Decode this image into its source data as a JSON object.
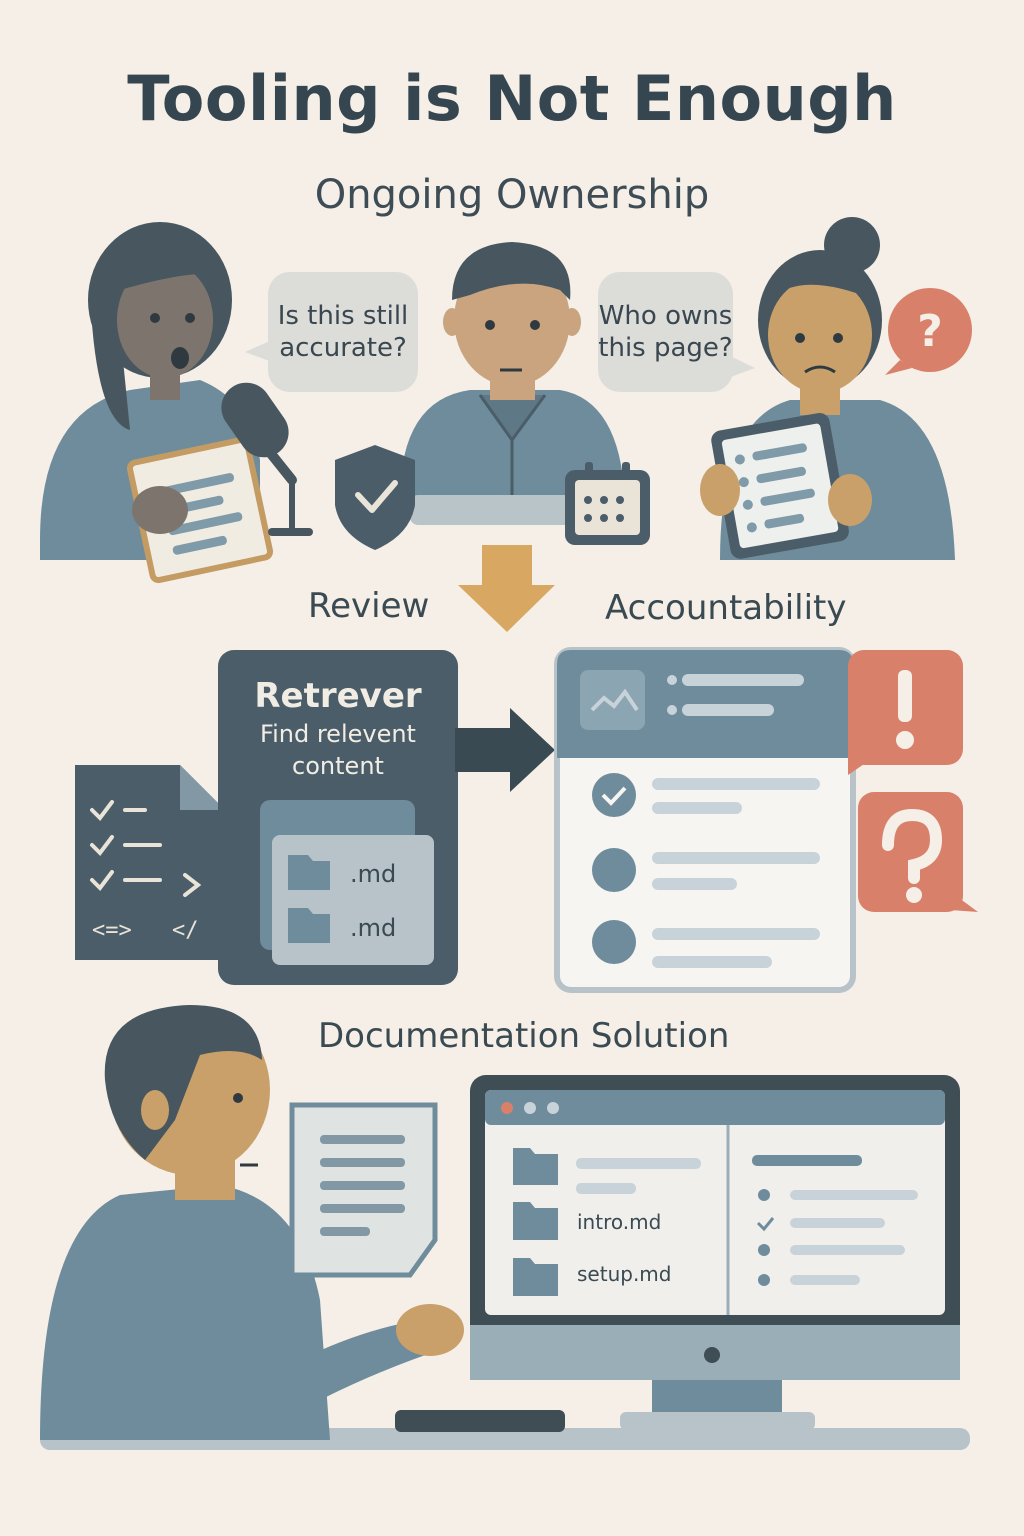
{
  "title": "Tooling is Not Enough",
  "subtitle": "Ongoing Ownership",
  "bubbles": {
    "left": "Is this still accurate?",
    "right": "Who owns this page?"
  },
  "labels": {
    "review": "Review",
    "accountability": "Accountability",
    "documentation": "Documentation Solution"
  },
  "retriever": {
    "title": "Retrever",
    "subtitle": "Find relevent content",
    "files": [
      ".md",
      ".md"
    ]
  },
  "code_doc_symbols": [
    "<=>",
    "</"
  ],
  "monitor": {
    "files": [
      "intro.md",
      "setup.md"
    ]
  },
  "icons": {
    "alert": "exclamation-icon",
    "question": "question-icon",
    "shield": "shield-check-icon",
    "calendar": "calendar-icon"
  },
  "colors": {
    "background": "#f5efe7",
    "slate": "#4a5d68",
    "blue_gray": "#6f8c9c",
    "accent_orange": "#d9806a",
    "accent_gold": "#d8a862"
  }
}
